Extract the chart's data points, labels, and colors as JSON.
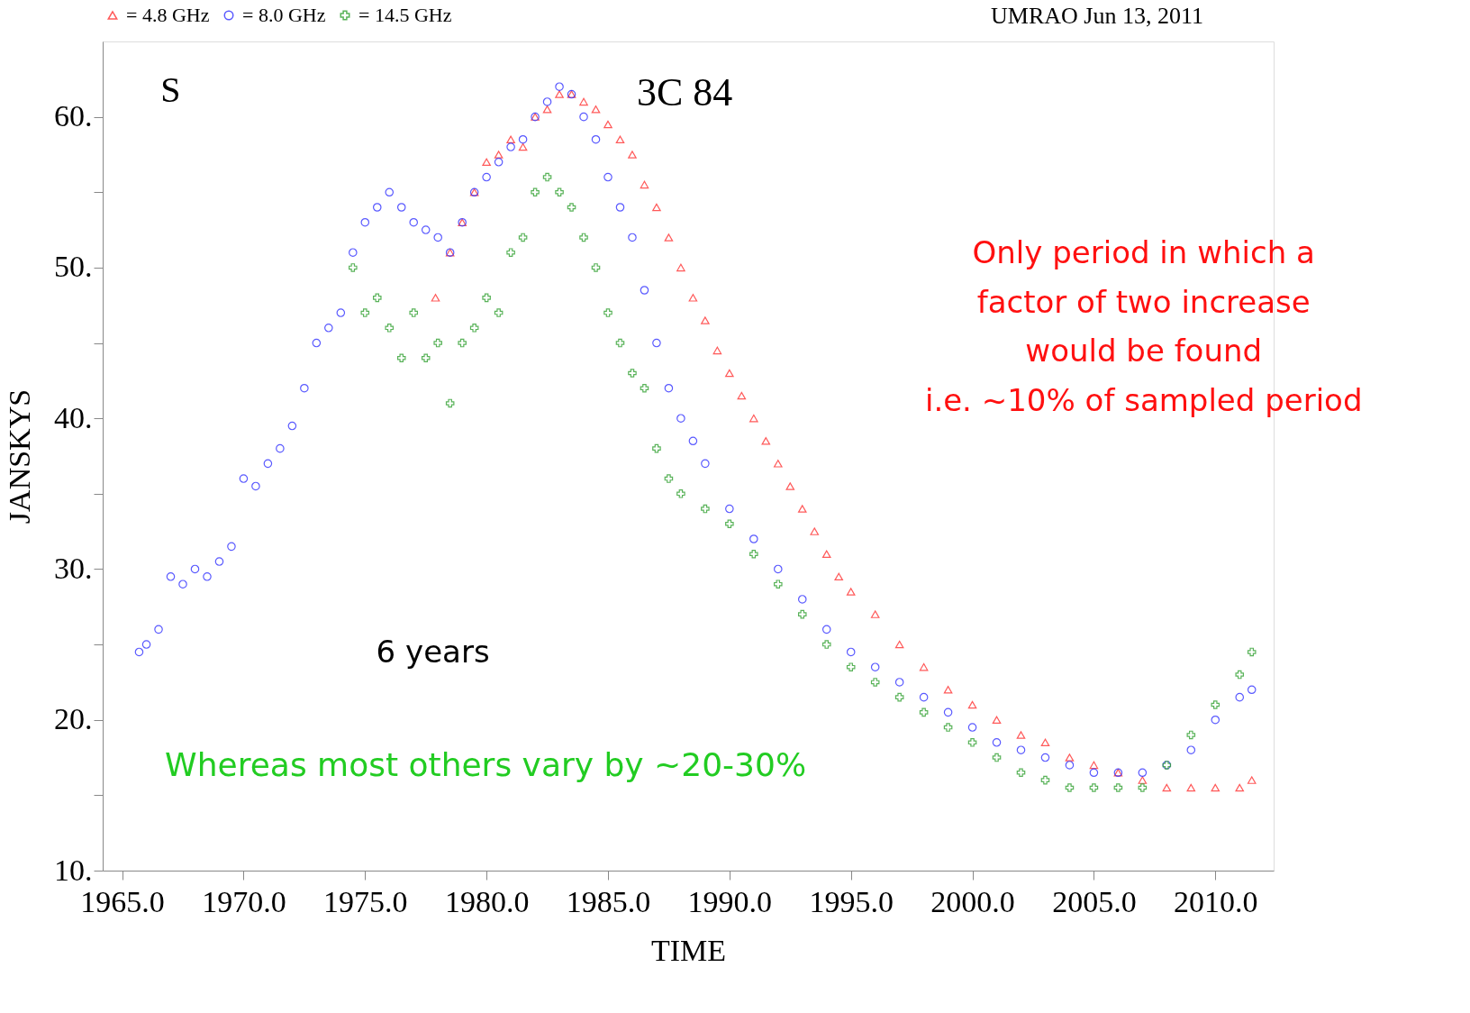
{
  "chart_data": {
    "type": "scatter",
    "title": "3C 84",
    "xlabel": "TIME",
    "ylabel": "JANSKYS",
    "xlim": [
      1964.2,
      2012.4
    ],
    "ylim": [
      10,
      65
    ],
    "xticks": [
      {
        "value": 1965,
        "label": "1965.0"
      },
      {
        "value": 1970,
        "label": "1970.0"
      },
      {
        "value": 1975,
        "label": "1975.0"
      },
      {
        "value": 1980,
        "label": "1980.0"
      },
      {
        "value": 1985,
        "label": "1985.0"
      },
      {
        "value": 1990,
        "label": "1990.0"
      },
      {
        "value": 1995,
        "label": "1995.0"
      },
      {
        "value": 2000,
        "label": "2000.0"
      },
      {
        "value": 2005,
        "label": "2005.0"
      },
      {
        "value": 2010,
        "label": "2010.0"
      }
    ],
    "yticks": [
      {
        "value": 10,
        "label": "10."
      },
      {
        "value": 15,
        "label": null
      },
      {
        "value": 20,
        "label": "20."
      },
      {
        "value": 25,
        "label": null
      },
      {
        "value": 30,
        "label": "30."
      },
      {
        "value": 35,
        "label": null
      },
      {
        "value": 40,
        "label": "40."
      },
      {
        "value": 45,
        "label": null
      },
      {
        "value": 50,
        "label": "50."
      },
      {
        "value": 55,
        "label": null
      },
      {
        "value": 60,
        "label": "60."
      }
    ],
    "grid": false,
    "legend": "top",
    "annotations": [
      "S",
      "UMRAO  Jun 13, 2011",
      "Only period in which a\nfactor of two increase\nwould be found\ni.e. ~10% of sampled period",
      "6 years",
      "Whereas most others vary by ~20-30%"
    ],
    "series": [
      {
        "name": "= 4.8 GHz",
        "color": "#ff3030",
        "marker": "triangle",
        "x": [
          1977.9,
          1978.5,
          1979,
          1979.5,
          1980,
          1980.5,
          1981,
          1981.5,
          1982,
          1982.5,
          1983,
          1983.5,
          1984,
          1984.5,
          1985,
          1985.5,
          1986,
          1986.5,
          1987,
          1987.5,
          1988,
          1988.5,
          1989,
          1989.5,
          1990,
          1990.5,
          1991,
          1991.5,
          1992,
          1992.5,
          1993,
          1993.5,
          1994,
          1994.5,
          1995,
          1996,
          1997,
          1998,
          1999,
          2000,
          2001,
          2002,
          2003,
          2004,
          2005,
          2006,
          2007,
          2008,
          2009,
          2010,
          2011,
          2011.5
        ],
        "values": [
          48,
          51,
          53,
          55,
          57,
          57.5,
          58.5,
          58,
          60,
          60.5,
          61.5,
          61.5,
          61,
          60.5,
          59.5,
          58.5,
          57.5,
          55.5,
          54,
          52,
          50,
          48,
          46.5,
          44.5,
          43,
          41.5,
          40,
          38.5,
          37,
          35.5,
          34,
          32.5,
          31,
          29.5,
          28.5,
          27,
          25,
          23.5,
          22,
          21,
          20,
          19,
          18.5,
          17.5,
          17,
          16.5,
          16,
          15.5,
          15.5,
          15.5,
          15.5,
          16
        ]
      },
      {
        "name": "= 8.0 GHz",
        "color": "#3030ff",
        "marker": "circle",
        "x": [
          1965.7,
          1966,
          1966.5,
          1967,
          1967.5,
          1968,
          1968.5,
          1969,
          1969.5,
          1970,
          1970.5,
          1971,
          1971.5,
          1972,
          1972.5,
          1973,
          1973.5,
          1974,
          1974.5,
          1975,
          1975.5,
          1976,
          1976.5,
          1977,
          1977.5,
          1978,
          1978.5,
          1979,
          1979.5,
          1980,
          1980.5,
          1981,
          1981.5,
          1982,
          1982.5,
          1983,
          1983.5,
          1984,
          1984.5,
          1985,
          1985.5,
          1986,
          1986.5,
          1987,
          1987.5,
          1988,
          1988.5,
          1989,
          1990,
          1991,
          1992,
          1993,
          1994,
          1995,
          1996,
          1997,
          1998,
          1999,
          2000,
          2001,
          2002,
          2003,
          2004,
          2005,
          2006,
          2007,
          2008,
          2009,
          2010,
          2011,
          2011.5
        ],
        "values": [
          24.5,
          25,
          26,
          29.5,
          29,
          30,
          29.5,
          30.5,
          31.5,
          36,
          35.5,
          37,
          38,
          39.5,
          42,
          45,
          46,
          47,
          51,
          53,
          54,
          55,
          54,
          53,
          52.5,
          52,
          51,
          53,
          55,
          56,
          57,
          58,
          58.5,
          60,
          61,
          62,
          61.5,
          60,
          58.5,
          56,
          54,
          52,
          48.5,
          45,
          42,
          40,
          38.5,
          37,
          34,
          32,
          30,
          28,
          26,
          24.5,
          23.5,
          22.5,
          21.5,
          20.5,
          19.5,
          18.5,
          18,
          17.5,
          17,
          16.5,
          16.5,
          16.5,
          17,
          18,
          20,
          21.5,
          22
        ]
      },
      {
        "name": "= 14.5 GHz",
        "color": "#30a030",
        "marker": "cross",
        "x": [
          1974.5,
          1975,
          1975.5,
          1976,
          1976.5,
          1977,
          1977.5,
          1978,
          1978.5,
          1979,
          1979.5,
          1980,
          1980.5,
          1981,
          1981.5,
          1982,
          1982.5,
          1983,
          1983.5,
          1984,
          1984.5,
          1985,
          1985.5,
          1986,
          1986.5,
          1987,
          1987.5,
          1988,
          1989,
          1990,
          1991,
          1992,
          1993,
          1994,
          1995,
          1996,
          1997,
          1998,
          1999,
          2000,
          2001,
          2002,
          2003,
          2004,
          2005,
          2006,
          2007,
          2008,
          2009,
          2010,
          2011,
          2011.5
        ],
        "values": [
          50,
          47,
          48,
          46,
          44,
          47,
          44,
          45,
          41,
          45,
          46,
          48,
          47,
          51,
          52,
          55,
          56,
          55,
          54,
          52,
          50,
          47,
          45,
          43,
          42,
          38,
          36,
          35,
          34,
          33,
          31,
          29,
          27,
          25,
          23.5,
          22.5,
          21.5,
          20.5,
          19.5,
          18.5,
          17.5,
          16.5,
          16,
          15.5,
          15.5,
          15.5,
          15.5,
          17,
          19,
          21,
          23,
          24.5
        ]
      }
    ]
  }
}
